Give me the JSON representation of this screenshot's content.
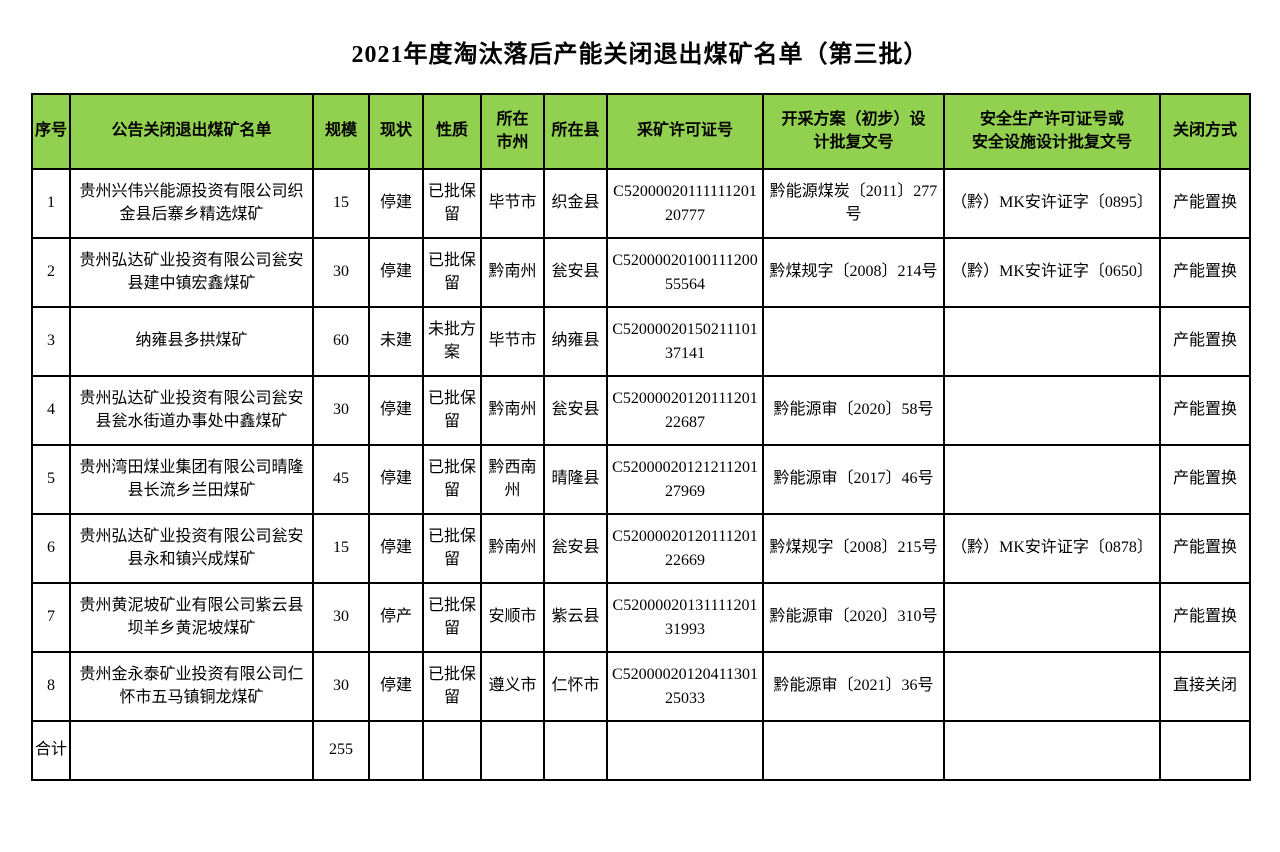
{
  "title": "2021年度淘汰落后产能关闭退出煤矿名单（第三批）",
  "colors": {
    "header_bg": "#92d050",
    "border": "#000000",
    "text": "#000000",
    "page_bg": "#ffffff"
  },
  "table": {
    "columns": [
      {
        "key": "seq",
        "label": "序号"
      },
      {
        "key": "name",
        "label": "公告关闭退出煤矿名单"
      },
      {
        "key": "scale",
        "label": "规模"
      },
      {
        "key": "status",
        "label": "现状"
      },
      {
        "key": "nature",
        "label": "性质"
      },
      {
        "key": "city",
        "label": "所在\n市州"
      },
      {
        "key": "county",
        "label": "所在县"
      },
      {
        "key": "license",
        "label": "采矿许可证号"
      },
      {
        "key": "plan",
        "label": "开采方案（初步）设\n计批复文号"
      },
      {
        "key": "safety",
        "label": "安全生产许可证号或\n安全设施设计批复文号"
      },
      {
        "key": "closure",
        "label": "关闭方式"
      }
    ],
    "rows": [
      {
        "seq": "1",
        "name": "贵州兴伟兴能源投资有限公司织金县后寨乡精选煤矿",
        "scale": "15",
        "status": "停建",
        "nature": "已批保留",
        "city": "毕节市",
        "county": "织金县",
        "license": "C5200002011111120120777",
        "plan": "黔能源煤炭〔2011〕277号",
        "safety": "（黔）MK安许证字〔0895〕",
        "closure": "产能置换"
      },
      {
        "seq": "2",
        "name": "贵州弘达矿业投资有限公司瓮安县建中镇宏鑫煤矿",
        "scale": "30",
        "status": "停建",
        "nature": "已批保留",
        "city": "黔南州",
        "county": "瓮安县",
        "license": "C5200002010011120055564",
        "plan": "黔煤规字〔2008〕214号",
        "safety": "（黔）MK安许证字〔0650〕",
        "closure": "产能置换"
      },
      {
        "seq": "3",
        "name": "纳雍县多拱煤矿",
        "scale": "60",
        "status": "未建",
        "nature": "未批方案",
        "city": "毕节市",
        "county": "纳雍县",
        "license": "C5200002015021110137141",
        "plan": "",
        "safety": "",
        "closure": "产能置换"
      },
      {
        "seq": "4",
        "name": "贵州弘达矿业投资有限公司瓮安县瓮水街道办事处中鑫煤矿",
        "scale": "30",
        "status": "停建",
        "nature": "已批保留",
        "city": "黔南州",
        "county": "瓮安县",
        "license": "C5200002012011120122687",
        "plan": "黔能源审〔2020〕58号",
        "safety": "",
        "closure": "产能置换"
      },
      {
        "seq": "5",
        "name": "贵州湾田煤业集团有限公司晴隆县长流乡兰田煤矿",
        "scale": "45",
        "status": "停建",
        "nature": "已批保留",
        "city": "黔西南州",
        "county": "晴隆县",
        "license": "C5200002012121120127969",
        "plan": "黔能源审〔2017〕46号",
        "safety": "",
        "closure": "产能置换"
      },
      {
        "seq": "6",
        "name": "贵州弘达矿业投资有限公司瓮安县永和镇兴成煤矿",
        "scale": "15",
        "status": "停建",
        "nature": "已批保留",
        "city": "黔南州",
        "county": "瓮安县",
        "license": "C5200002012011120122669",
        "plan": "黔煤规字〔2008〕215号",
        "safety": "（黔）MK安许证字〔0878〕",
        "closure": "产能置换"
      },
      {
        "seq": "7",
        "name": "贵州黄泥坡矿业有限公司紫云县坝羊乡黄泥坡煤矿",
        "scale": "30",
        "status": "停产",
        "nature": "已批保留",
        "city": "安顺市",
        "county": "紫云县",
        "license": "C5200002013111120131993",
        "plan": "黔能源审〔2020〕310号",
        "safety": "",
        "closure": "产能置换"
      },
      {
        "seq": "8",
        "name": "贵州金永泰矿业投资有限公司仁怀市五马镇铜龙煤矿",
        "scale": "30",
        "status": "停建",
        "nature": "已批保留",
        "city": "遵义市",
        "county": "仁怀市",
        "license": "C5200002012041130125033",
        "plan": "黔能源审〔2021〕36号",
        "safety": "",
        "closure": "直接关闭"
      }
    ],
    "total_row": {
      "seq": "合计",
      "name": "",
      "scale": "255",
      "status": "",
      "nature": "",
      "city": "",
      "county": "",
      "license": "",
      "plan": "",
      "safety": "",
      "closure": ""
    }
  }
}
